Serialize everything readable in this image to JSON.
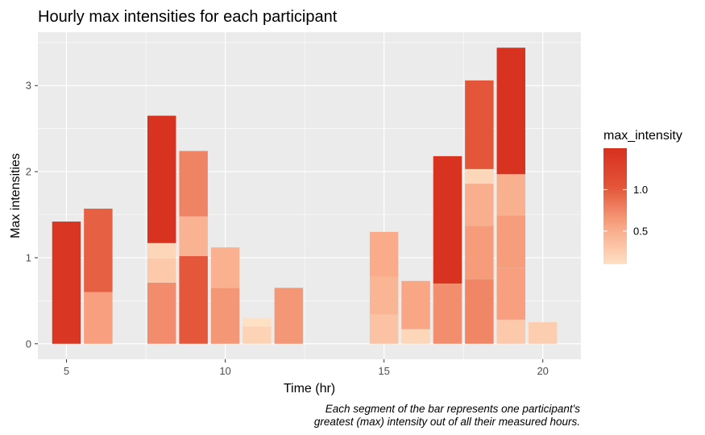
{
  "chart_data": {
    "type": "bar",
    "stacked": true,
    "title": "Hourly max intensities for each participant",
    "xlabel": "Time (hr)",
    "ylabel": "Max intensities",
    "xlim": [
      4.1,
      21.2
    ],
    "ylim": [
      -0.18,
      3.62
    ],
    "xticks": [
      5,
      10,
      15,
      20
    ],
    "yticks": [
      0,
      1,
      2,
      3
    ],
    "grid": true,
    "legend": {
      "title": "max_intensity",
      "position": "right",
      "type": "colorbar",
      "labels": [
        1.0,
        0.5
      ],
      "label_texts": [
        "1.0",
        "0.5"
      ],
      "range": [
        0.1,
        1.5
      ],
      "colors": [
        "#fee0c4",
        "#f8a583",
        "#e35539",
        "#d7301f"
      ]
    },
    "caption": [
      "Each segment of the bar represents one participant's",
      "greatest (max) intensity out of all their measured hours."
    ],
    "bars": [
      {
        "x": 5,
        "segments": [
          1.42
        ]
      },
      {
        "x": 6,
        "segments": [
          0.6,
          0.97
        ]
      },
      {
        "x": 8,
        "segments": [
          0.71,
          0.28,
          0.18,
          1.48
        ]
      },
      {
        "x": 9,
        "segments": [
          1.02,
          0.46,
          0.76
        ]
      },
      {
        "x": 10,
        "segments": [
          0.65,
          0.47
        ]
      },
      {
        "x": 11,
        "segments": [
          0.2,
          0.1
        ]
      },
      {
        "x": 12,
        "segments": [
          0.65
        ]
      },
      {
        "x": 15,
        "segments": [
          0.34,
          0.44,
          0.52
        ]
      },
      {
        "x": 16,
        "segments": [
          0.17,
          0.56
        ]
      },
      {
        "x": 17,
        "segments": [
          0.7,
          1.48
        ]
      },
      {
        "x": 18,
        "segments": [
          0.75,
          0.62,
          0.49,
          0.17,
          1.03
        ]
      },
      {
        "x": 19,
        "segments": [
          0.28,
          0.6,
          0.61,
          0.48,
          1.47
        ]
      },
      {
        "x": 20,
        "segments": [
          0.25
        ]
      }
    ]
  }
}
